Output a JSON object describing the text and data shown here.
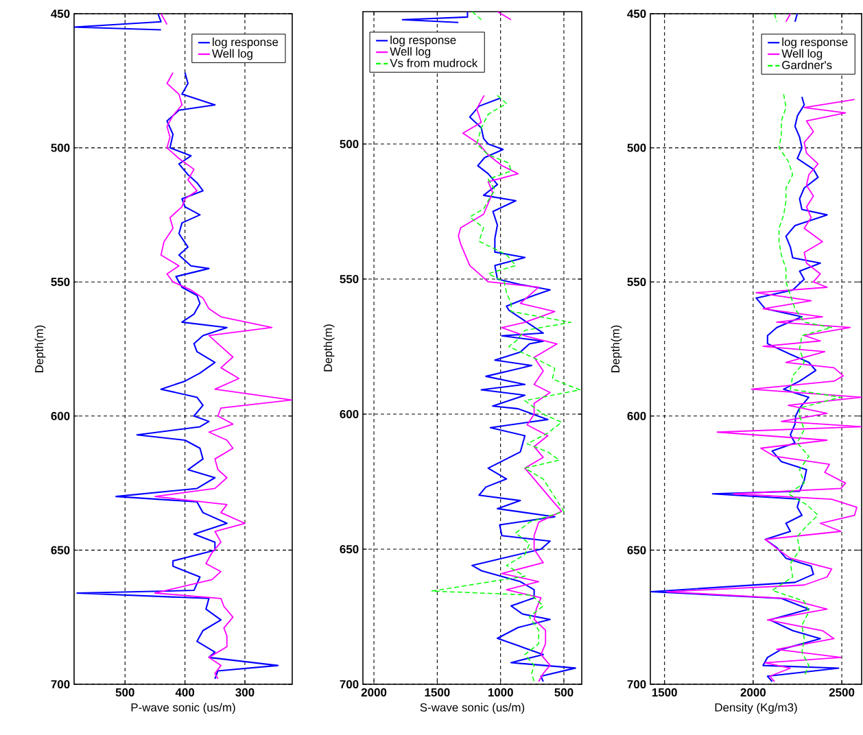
{
  "chart_data": [
    {
      "type": "line",
      "xlabel": "P-wave sonic (us/m)",
      "ylabel": "Depth(m)",
      "xlim": [
        585,
        221
      ],
      "xticks": [
        500,
        400,
        300
      ],
      "ylim": [
        700,
        450
      ],
      "yticks": [
        450,
        500,
        550,
        600,
        650,
        700
      ],
      "grid": true,
      "legend": "top right",
      "series": [
        {
          "name": "log response",
          "color": "#0000ff",
          "x": [
            445,
            440,
            585,
            440,
            null,
            400,
            395,
            405,
            350,
            410,
            430,
            420,
            425,
            390,
            410,
            395,
            380,
            370,
            405,
            400,
            375,
            405,
            410,
            395,
            410,
            390,
            360,
            415,
            405,
            380,
            375,
            385,
            405,
            330,
            370,
            385,
            380,
            350,
            375,
            400,
            440,
            380,
            370,
            385,
            360,
            375,
            480,
            400,
            375,
            370,
            395,
            350,
            380,
            515,
            380,
            370,
            330,
            385,
            350,
            350,
            420,
            420,
            375,
            385,
            580,
            360,
            365,
            340,
            370,
            380,
            350,
            360,
            245,
            345,
            350
          ],
          "values": [
            450,
            453,
            455,
            456,
            null,
            472,
            476,
            480,
            484,
            486,
            490,
            495,
            500,
            503,
            506,
            510,
            513,
            516,
            519,
            522,
            525,
            528,
            532,
            537,
            540,
            544,
            545,
            548,
            552,
            555,
            558,
            562,
            565,
            567,
            570,
            573,
            576,
            580,
            584,
            587,
            590,
            593,
            596,
            600,
            602,
            604,
            607,
            609,
            612,
            616,
            620,
            623,
            627,
            630,
            632,
            636,
            640,
            644,
            647,
            650,
            654,
            656,
            660,
            665,
            666,
            668,
            672,
            676,
            680,
            684,
            688,
            690,
            693,
            695,
            698
          ]
        },
        {
          "name": "Well log",
          "color": "#ff00ff",
          "x": [
            440,
            430,
            null,
            420,
            430,
            410,
            405,
            420,
            430,
            425,
            430,
            410,
            385,
            395,
            380,
            400,
            405,
            425,
            420,
            435,
            440,
            410,
            430,
            420,
            390,
            370,
            360,
            340,
            255,
            360,
            340,
            320,
            340,
            310,
            350,
            222,
            340,
            345,
            320,
            360,
            330,
            320,
            350,
            345,
            330,
            350,
            450,
            330,
            340,
            300,
            350,
            340,
            355,
            365,
            340,
            355,
            450,
            340,
            335,
            320,
            335,
            330,
            330,
            360,
            340,
            350,
            345
          ],
          "values": [
            450,
            454,
            null,
            472,
            476,
            480,
            484,
            488,
            492,
            496,
            500,
            504,
            508,
            512,
            516,
            519,
            522,
            526,
            530,
            535,
            540,
            544,
            547,
            550,
            553,
            556,
            560,
            563,
            567,
            570,
            574,
            578,
            582,
            586,
            590,
            594,
            597,
            600,
            603,
            606,
            609,
            612,
            616,
            620,
            623,
            627,
            630,
            633,
            636,
            640,
            643,
            647,
            651,
            655,
            658,
            661,
            666,
            668,
            671,
            675,
            679,
            682,
            686,
            690,
            693,
            696,
            698
          ]
        }
      ]
    },
    {
      "type": "line",
      "xlabel": "S-wave sonic (us/m)",
      "ylabel": "Depth(m)",
      "xlim": [
        2087,
        359
      ],
      "xticks": [
        2000,
        1500,
        1000,
        500
      ],
      "ylim": [
        700,
        451
      ],
      "yticks": [
        500,
        550,
        600,
        650,
        700
      ],
      "grid": true,
      "legend": "top left",
      "series": [
        {
          "name": "log response",
          "color": "#0000ff",
          "x": [
            1261,
            1261,
            1775,
            1333,
            null,
            1000,
            1170,
            1243,
            1152,
            1134,
            1098,
            980,
            1125,
            1180,
            1098,
            1025,
            1134,
            880,
            1060,
            1025,
            1045,
            1045,
            808,
            1045,
            1025,
            844,
            609,
            735,
            844,
            953,
            935,
            663,
            990,
            663,
            772,
            844,
            1045,
            754,
            1116,
            808,
            1152,
            808,
            1062,
            862,
            627,
            1080,
            808,
            844,
            1098,
            953,
            1116,
            1170,
            844,
            1025,
            572,
            1007,
            990,
            609,
            681,
            1225,
            1150,
            844,
            735,
            735,
            917,
            826,
            609,
            862,
            1025,
            844,
            663,
            917,
            409,
            681,
            663
          ],
          "values": [
            451,
            453,
            454,
            455,
            null,
            483,
            486,
            490,
            494,
            498,
            500,
            502,
            505,
            508,
            511,
            515,
            519,
            521,
            525,
            530,
            535,
            540,
            542,
            545,
            550,
            552,
            554,
            556,
            558,
            560,
            561.5,
            570,
            571,
            573,
            574,
            577,
            580,
            582,
            586,
            589,
            591,
            593,
            597,
            598,
            602,
            605,
            608,
            614,
            620,
            624,
            627,
            630,
            632,
            635,
            638,
            641,
            645,
            647,
            650,
            656,
            658,
            662,
            665,
            668,
            671,
            674,
            676,
            679,
            683,
            686,
            689,
            692,
            694,
            697,
            699
          ]
        },
        {
          "name": "Well log",
          "color": "#ff00ff",
          "x": [
            1025,
            917,
            null,
            1130,
            1188,
            1152,
            1297,
            1170,
            1098,
            990,
            862,
            1098,
            1062,
            1098,
            1134,
            1315,
            1333,
            1315,
            1279,
            1243,
            1170,
            1098,
            699,
            772,
            844,
            572,
            808,
            990,
            808,
            554,
            735,
            663,
            735,
            609,
            735,
            735,
            790,
            627,
            735,
            663,
            808,
            735,
            663,
            591,
            518,
            699,
            735,
            735,
            663,
            990,
            699,
            953,
            681,
            717,
            735,
            645,
            645,
            681,
            609,
            663,
            699
          ],
          "values": [
            451,
            454,
            null,
            482,
            487,
            492,
            496,
            500,
            504,
            508,
            511,
            514,
            518,
            522,
            526,
            531,
            534,
            537,
            541,
            545,
            548,
            551,
            553,
            556,
            559,
            562,
            566,
            568,
            571,
            574,
            579,
            584,
            589,
            592,
            596,
            600,
            604,
            608,
            612,
            616,
            620,
            624,
            628,
            632,
            636,
            640,
            645,
            650,
            655,
            659,
            662,
            665,
            668,
            672,
            676,
            680,
            685,
            689,
            693,
            696,
            699
          ]
        },
        {
          "name": "Vs from mudrock",
          "color": "#00ff00",
          "line_style": "dashed",
          "x": [
            1225,
            1152,
            null,
            1025,
            953,
            1098,
            1152,
            1188,
            1098,
            935,
            917,
            1098,
            1045,
            1098,
            1134,
            1243,
            1134,
            1170,
            953,
            880,
            1098,
            971,
            953,
            917,
            917,
            446,
            808,
            880,
            935,
            699,
            572,
            591,
            373,
            808,
            663,
            518,
            627,
            790,
            627,
            536,
            808,
            663,
            609,
            554,
            500,
            772,
            880,
            772,
            808,
            953,
            808,
            1542,
            754,
            663,
            772,
            699,
            699,
            808,
            735,
            754,
            735
          ],
          "values": [
            451,
            454,
            null,
            482,
            485,
            489,
            494,
            500,
            504,
            507,
            510,
            513,
            517,
            521,
            524,
            527,
            531,
            536,
            541,
            545,
            548,
            551,
            555,
            559,
            562,
            566,
            569,
            573,
            575,
            580,
            583,
            587,
            591,
            595,
            600,
            603,
            607,
            611,
            614,
            617,
            620,
            624,
            628,
            632,
            636,
            640,
            644,
            648,
            652,
            656,
            660,
            665.5,
            667,
            671,
            675,
            680,
            685,
            689,
            693,
            696,
            699
          ]
        }
      ]
    },
    {
      "type": "line",
      "xlabel": "Density (Kg/m3)",
      "ylabel": "Depth(m)",
      "xlim": [
        1420,
        2612
      ],
      "xticks": [
        1500,
        2000,
        2500
      ],
      "ylim": [
        700,
        450
      ],
      "yticks": [
        450,
        500,
        550,
        600,
        650,
        700
      ],
      "grid": true,
      "legend": "top right",
      "series": [
        {
          "name": "log response",
          "color": "#0000ff",
          "x": [
            2249,
            2236,
            null,
            2275,
            2288,
            2250,
            2236,
            2262,
            2275,
            2249,
            2340,
            2366,
            2288,
            2262,
            2275,
            2417,
            2236,
            2185,
            2210,
            2223,
            2379,
            2262,
            2288,
            2223,
            2017,
            2068,
            2275,
            2133,
            2081,
            2081,
            2210,
            2314,
            2353,
            2262,
            2172,
            2314,
            2262,
            2240,
            2236,
            2210,
            2236,
            2107,
            2159,
            2301,
            2288,
            2262,
            1771,
            2262,
            2249,
            2275,
            2185,
            2210,
            2068,
            2133,
            2185,
            2327,
            2340,
            2236,
            1425,
            2159,
            2314,
            2094,
            2223,
            2379,
            2159,
            2081,
            2056,
            2482,
            2081,
            2107
          ],
          "values": [
            450,
            453,
            null,
            481,
            484,
            488,
            492,
            496,
            500,
            504,
            508,
            511,
            515,
            519,
            523,
            525,
            529,
            533,
            537,
            541,
            543,
            546,
            549,
            553,
            556,
            560,
            563,
            567,
            570,
            573,
            577,
            580,
            583,
            587,
            590,
            593,
            597,
            600,
            603,
            607,
            610,
            613,
            617,
            620,
            624,
            628,
            629,
            631,
            634,
            637,
            640,
            643,
            646,
            649,
            653,
            656,
            659,
            662,
            665.5,
            668,
            672,
            676,
            680,
            683,
            687,
            690,
            693,
            694,
            697,
            699
          ]
        },
        {
          "name": "Well log",
          "color": "#ff00ff",
          "x": [
            2210,
            2185,
            null,
            2572,
            2288,
            2521,
            2301,
            2340,
            2288,
            2301,
            2366,
            2314,
            2301,
            2340,
            2301,
            2327,
            2288,
            2391,
            2288,
            2301,
            2379,
            2340,
            2417,
            2017,
            2327,
            2056,
            2391,
            2133,
            2547,
            2288,
            2379,
            2056,
            2404,
            2185,
            2456,
            2508,
            2456,
            1991,
            2611,
            2198,
            2417,
            2159,
            2611,
            1797,
            2417,
            2043,
            2120,
            2430,
            2404,
            2521,
            2495,
            1890,
            2443,
            2585,
            2572,
            2379,
            2495,
            2068,
            2146,
            2210,
            2443,
            2417,
            2288,
            1513,
            2185,
            2417,
            2081,
            2391,
            2456,
            2133,
            2495,
            2068,
            2210,
            2094,
            2120
          ],
          "values": [
            450,
            453,
            null,
            482,
            485,
            487,
            490,
            494,
            498,
            502,
            506,
            510,
            514,
            518,
            522,
            526,
            530,
            535,
            539,
            543,
            547,
            550,
            552,
            554,
            557,
            560,
            563,
            565,
            567,
            570,
            572,
            574,
            576,
            580,
            582,
            585,
            587,
            590,
            593,
            596,
            599,
            602,
            604,
            606,
            609,
            612,
            615,
            618,
            621,
            625,
            627,
            629,
            631,
            634,
            637,
            640,
            643,
            646,
            650,
            653,
            657,
            660,
            663,
            665.5,
            668,
            672,
            676,
            680,
            683,
            687,
            690,
            692,
            694,
            697,
            699
          ]
        },
        {
          "name": "Gardner's",
          "color": "#00ff00",
          "line_style": "dashed",
          "x": [
            2120,
            2133,
            null,
            2172,
            2185,
            2159,
            2159,
            2146,
            2198,
            2223,
            2185,
            2185,
            2172,
            2146,
            2146,
            2159,
            2185,
            2185,
            2210,
            2236,
            2288,
            2443,
            2275,
            2262,
            2288,
            2223,
            2210,
            2495,
            2262,
            2262,
            2288,
            2249,
            2314,
            2262,
            2288,
            2198,
            2301,
            2366,
            2301,
            2249,
            2262,
            2210,
            2223,
            2107,
            2288,
            2314,
            2275,
            2288,
            2275,
            2314,
            2288
          ],
          "values": [
            450,
            453,
            null,
            480,
            485,
            490,
            495,
            500,
            505,
            510,
            515,
            520,
            525,
            530,
            535,
            540,
            545,
            550,
            555,
            560,
            565,
            567,
            570,
            575,
            580,
            585,
            590,
            593,
            597,
            600,
            605,
            610,
            615,
            620,
            625,
            629,
            633,
            637,
            641,
            645,
            650,
            655,
            660,
            665,
            669,
            673,
            678,
            683,
            688,
            693,
            697
          ]
        }
      ]
    }
  ]
}
